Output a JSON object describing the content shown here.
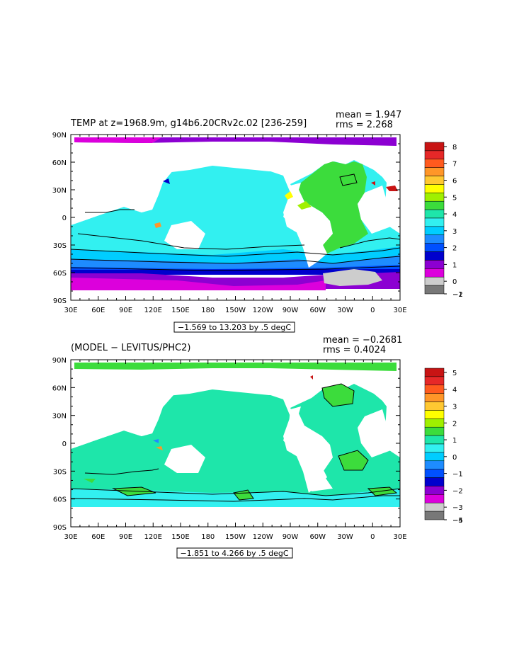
{
  "chart_data": [
    {
      "type": "heatmap",
      "title": "TEMP at z=1968.9m, g14b6.20CRv2c.02 [236-259]",
      "stats": {
        "mean": "mean = 1.947",
        "rms": "rms = 2.268"
      },
      "contour_info": "−1.569 to 13.203 by .5 degC",
      "x_ticks": [
        "30E",
        "60E",
        "90E",
        "120E",
        "150E",
        "180",
        "150W",
        "120W",
        "90W",
        "60W",
        "30W",
        "0",
        "30E"
      ],
      "y_ticks": [
        "90N",
        "60N",
        "30N",
        "0",
        "30S",
        "60S",
        "90S"
      ],
      "colorbar": {
        "labels": [
          "8",
          "7",
          "6",
          "5",
          "4",
          "3",
          "2",
          "1",
          "0",
          "−1",
          "−2"
        ],
        "colors": [
          "#c81414",
          "#e62828",
          "#ff5a1e",
          "#ff9628",
          "#ffc832",
          "#ffff00",
          "#a0f000",
          "#3cdc3c",
          "#1ee6aa",
          "#32f0f0",
          "#00cdff",
          "#1e8cff",
          "#0050ff",
          "#0000cd",
          "#8c00d2",
          "#dc00dc",
          "#cdcdcd",
          "#787878"
        ]
      }
    },
    {
      "type": "heatmap",
      "title": "(MODEL − LEVITUS/PHC2)",
      "stats": {
        "mean": "mean = −0.2681",
        "rms": "rms = 0.4024"
      },
      "contour_info": "−1.851 to 4.266 by .5 degC",
      "x_ticks": [
        "30E",
        "60E",
        "90E",
        "120E",
        "150E",
        "180",
        "150W",
        "120W",
        "90W",
        "60W",
        "30W",
        "0",
        "30E"
      ],
      "y_ticks": [
        "90N",
        "60N",
        "30N",
        "0",
        "30S",
        "60S",
        "90S"
      ],
      "colorbar": {
        "labels": [
          "5",
          "4",
          "3",
          "2",
          "1",
          "0",
          "−1",
          "−2",
          "−3",
          "−4",
          "−5"
        ],
        "colors": [
          "#c81414",
          "#e62828",
          "#ff5a1e",
          "#ff9628",
          "#ffc832",
          "#ffff00",
          "#a0f000",
          "#3cdc3c",
          "#1ee6aa",
          "#32f0f0",
          "#00cdff",
          "#1e8cff",
          "#0050ff",
          "#0000cd",
          "#8c00d2",
          "#dc00dc",
          "#cdcdcd",
          "#787878"
        ]
      }
    }
  ]
}
